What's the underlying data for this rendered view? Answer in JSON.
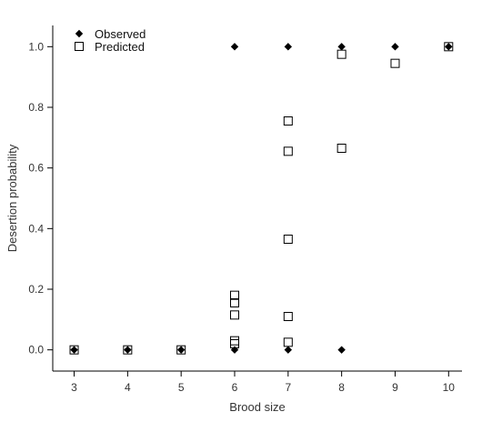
{
  "chart_data": {
    "type": "scatter",
    "xlabel": "Brood size",
    "ylabel": "Desertion probability",
    "xlim": [
      2.6,
      10.25
    ],
    "ylim": [
      -0.07,
      1.07
    ],
    "xticks": [
      3,
      4,
      5,
      6,
      7,
      8,
      9,
      10
    ],
    "yticks": [
      0.0,
      0.2,
      0.4,
      0.6,
      0.8,
      1.0
    ],
    "ytick_labels": [
      "0.0",
      "0.2",
      "0.4",
      "0.6",
      "0.8",
      "1.0"
    ],
    "grid": false,
    "legend_position": "top-left",
    "series": [
      {
        "name": "Observed",
        "marker": "diamond",
        "filled": true,
        "points": [
          {
            "x": 3,
            "y": 0.0
          },
          {
            "x": 4,
            "y": 0.0
          },
          {
            "x": 5,
            "y": 0.0
          },
          {
            "x": 6,
            "y": 0.0
          },
          {
            "x": 6,
            "y": 1.0
          },
          {
            "x": 7,
            "y": 0.0
          },
          {
            "x": 7,
            "y": 1.0
          },
          {
            "x": 8,
            "y": 0.0
          },
          {
            "x": 8,
            "y": 1.0
          },
          {
            "x": 9,
            "y": 1.0
          },
          {
            "x": 10,
            "y": 1.0
          }
        ]
      },
      {
        "name": "Predicted",
        "marker": "square",
        "filled": false,
        "points": [
          {
            "x": 3,
            "y": 0.0
          },
          {
            "x": 4,
            "y": 0.0
          },
          {
            "x": 5,
            "y": 0.0
          },
          {
            "x": 6,
            "y": 0.02
          },
          {
            "x": 6,
            "y": 0.03
          },
          {
            "x": 6,
            "y": 0.115
          },
          {
            "x": 6,
            "y": 0.155
          },
          {
            "x": 6,
            "y": 0.18
          },
          {
            "x": 7,
            "y": 0.025
          },
          {
            "x": 7,
            "y": 0.11
          },
          {
            "x": 7,
            "y": 0.365
          },
          {
            "x": 7,
            "y": 0.655
          },
          {
            "x": 7,
            "y": 0.755
          },
          {
            "x": 8,
            "y": 0.665
          },
          {
            "x": 8,
            "y": 0.975
          },
          {
            "x": 9,
            "y": 0.945
          },
          {
            "x": 10,
            "y": 1.0
          }
        ]
      }
    ]
  }
}
